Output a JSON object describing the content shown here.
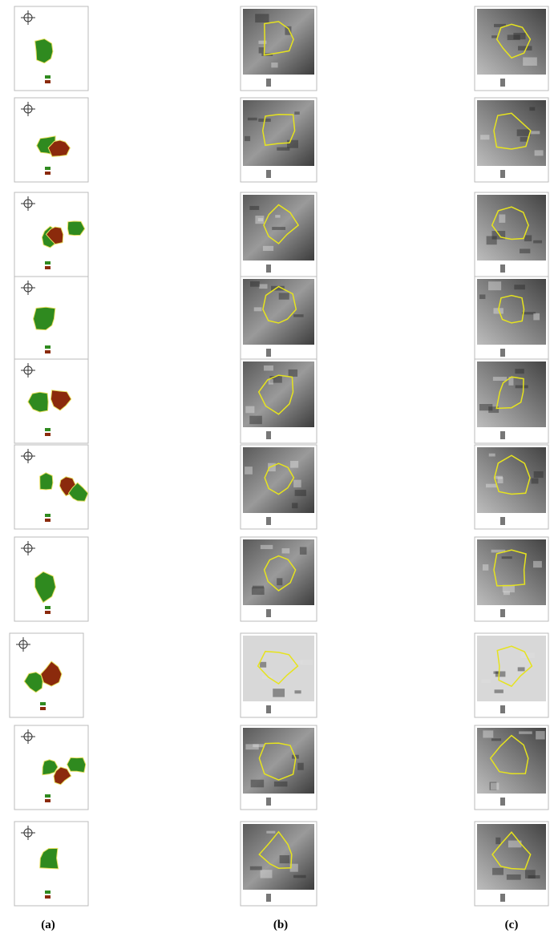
{
  "figure": {
    "panel_labels": [
      "(a)",
      "(b)",
      "(c)"
    ]
  }
}
